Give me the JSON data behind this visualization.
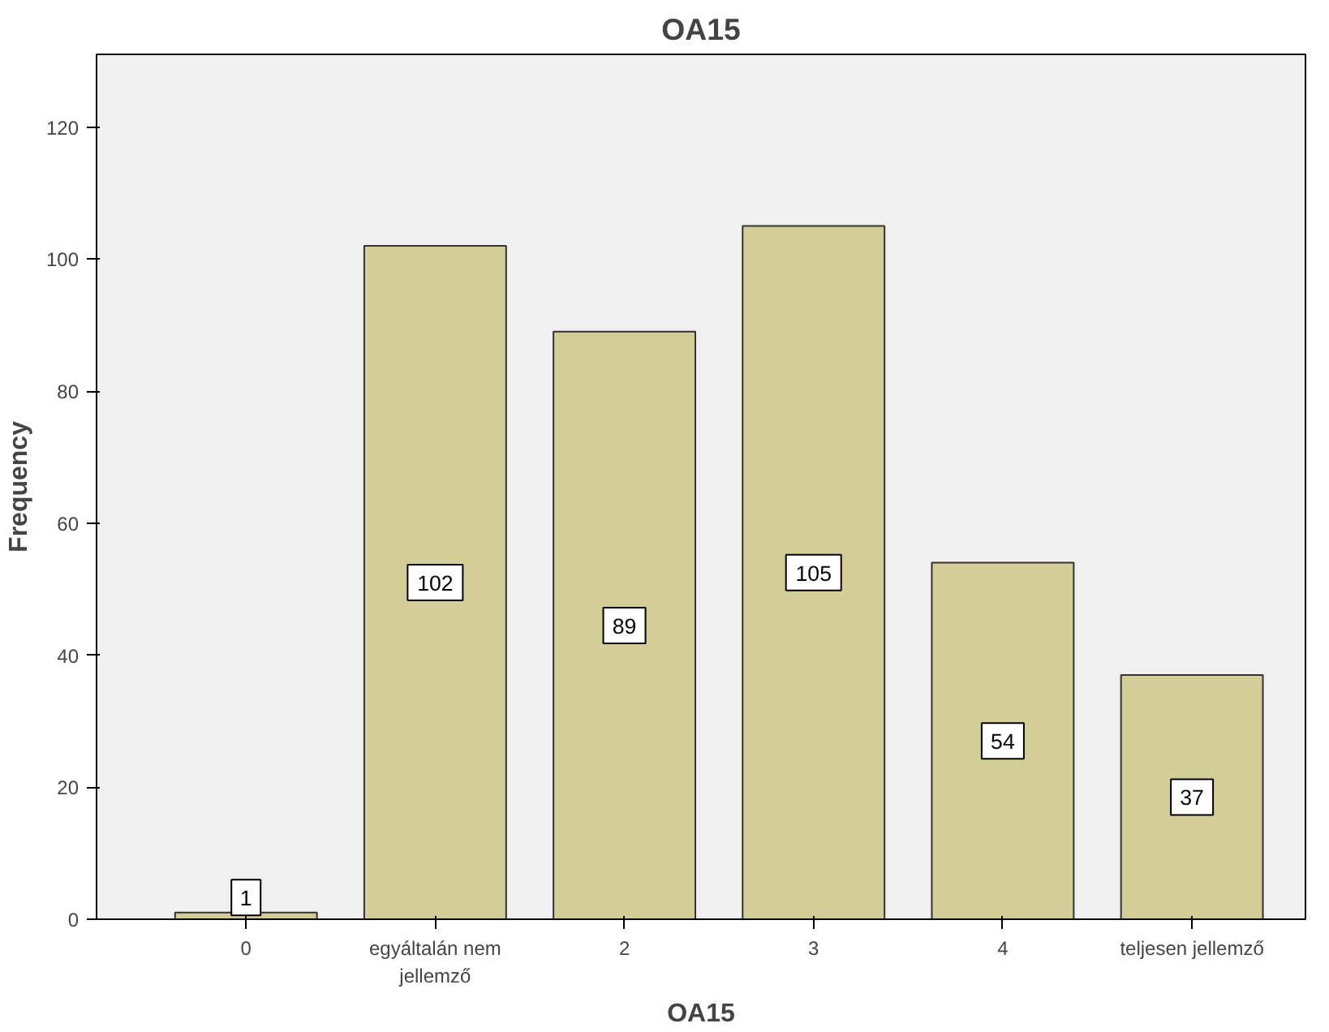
{
  "chart_data": {
    "type": "bar",
    "title": "OA15",
    "xlabel": "OA15",
    "ylabel": "Frequency",
    "categories": [
      "0",
      "egyáltalán nem jellemző",
      "2",
      "3",
      "4",
      "teljesen jellemző"
    ],
    "values": [
      1,
      102,
      89,
      105,
      54,
      37
    ],
    "color": "#d3ce97",
    "ylim": [
      0,
      131
    ],
    "yticks": [
      0,
      20,
      40,
      60,
      80,
      100,
      120
    ],
    "grid": false,
    "data_labels": true
  }
}
